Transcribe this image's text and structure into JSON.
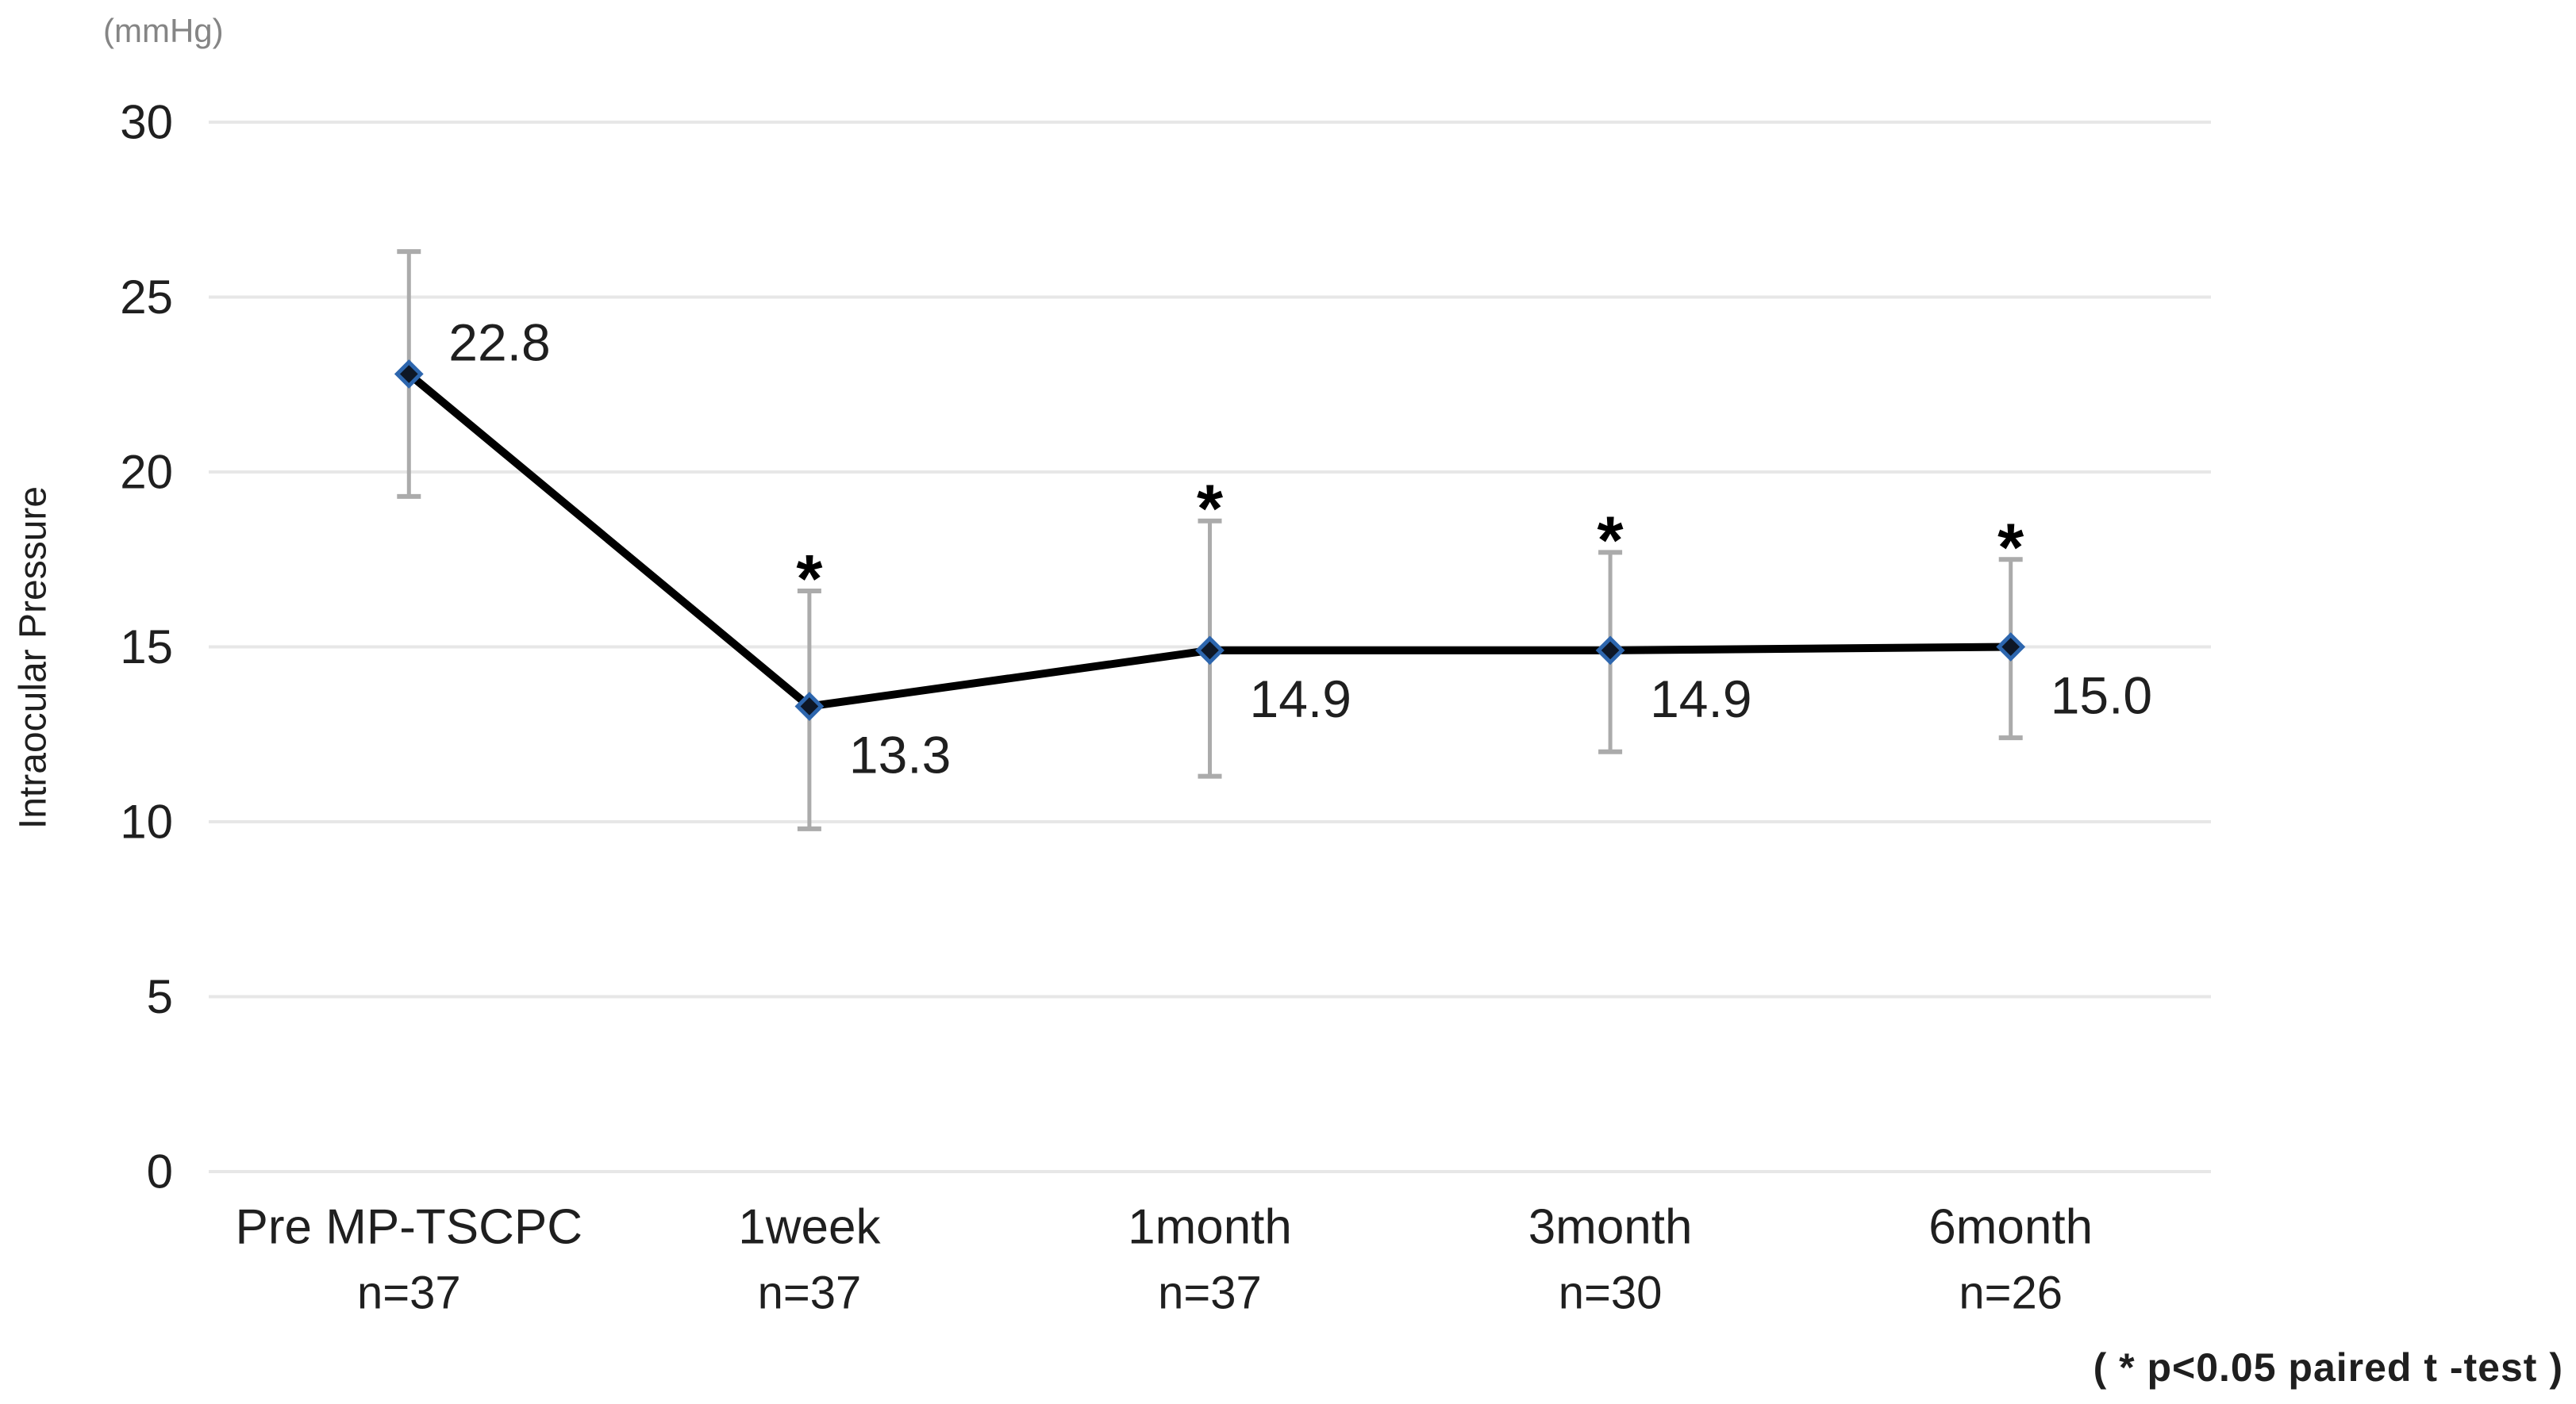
{
  "chart_data": {
    "type": "line",
    "title": "",
    "ylabel": "Intraocular Pressure",
    "y_unit": "(mmHg)",
    "xlabel": "",
    "ylim": [
      0,
      30
    ],
    "yticks": [
      0,
      5,
      10,
      15,
      20,
      25,
      30
    ],
    "grid": true,
    "legend": "none",
    "categories": [
      "Pre MP-TSCPC",
      "1week",
      "1month",
      "3month",
      "6month"
    ],
    "category_n": [
      "n=37",
      "n=37",
      "n=37",
      "n=30",
      "n=26"
    ],
    "values": [
      22.8,
      13.3,
      14.9,
      14.9,
      15.0
    ],
    "value_labels": [
      "22.8",
      "13.3",
      "14.9",
      "14.9",
      "15.0"
    ],
    "error_upper": [
      26.3,
      16.6,
      18.6,
      17.7,
      17.5
    ],
    "error_lower": [
      19.3,
      9.8,
      11.3,
      12.0,
      12.4
    ],
    "significant": [
      false,
      true,
      true,
      true,
      true
    ],
    "significance_marker": "*",
    "label_side": [
      "above-right",
      "below-right",
      "below-right",
      "below-right",
      "below-right"
    ],
    "footnote": "( * p<0.05 paired t -test )"
  },
  "colors": {
    "line": "#000000",
    "marker_fill": "#0e1726",
    "marker_stroke": "#2d66ae",
    "error_bar": "#ababab",
    "gridline": "#e7e7e7",
    "text": "#1f1f1f",
    "unit_text": "#858585"
  }
}
